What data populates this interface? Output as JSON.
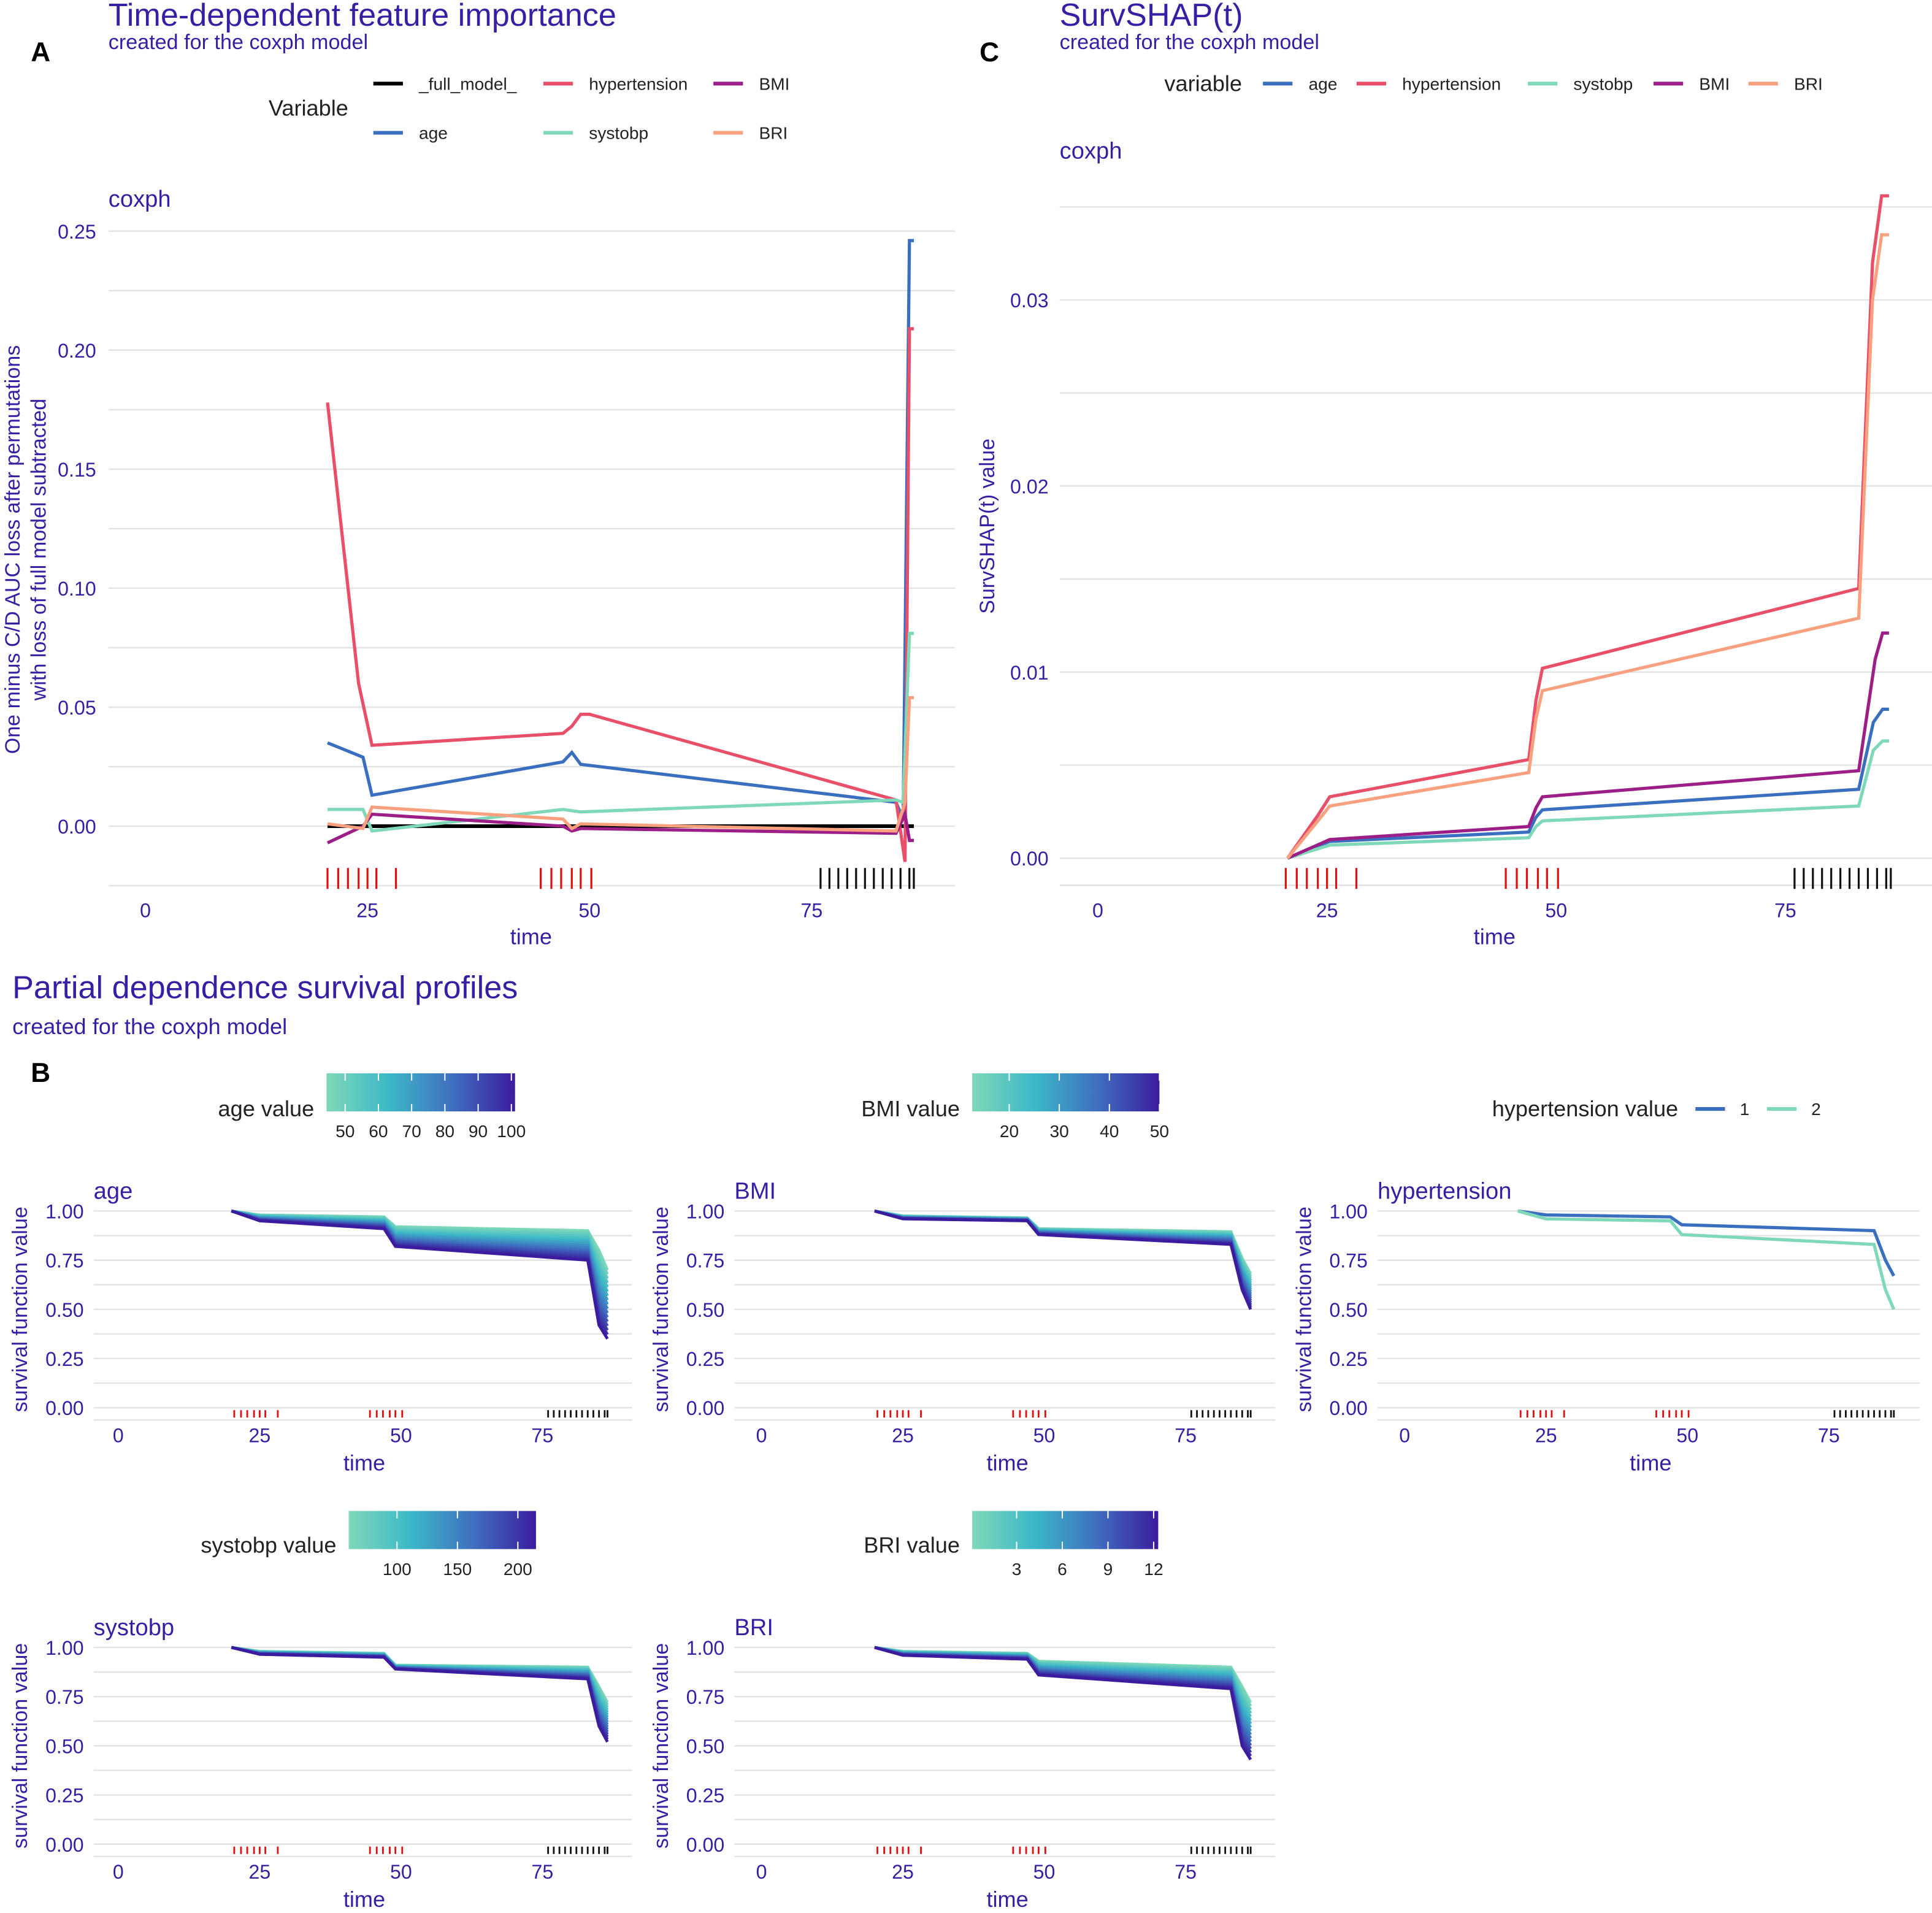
{
  "colors": {
    "text": "#371ea3",
    "full_model": "#000000",
    "age": "#3a6fbf",
    "hypertension": "#e8506a",
    "systobp": "#7fd8b8",
    "BMI": "#9c1f88",
    "BRI": "#f9a07f",
    "grid": "#e3e3e3",
    "rug_event": "#e01010",
    "rug_censor": "#111111",
    "gradient": [
      "#7fd8b8",
      "#3cb8c8",
      "#3f6fbf",
      "#3b1c9e"
    ]
  },
  "labels": {
    "A": "A",
    "B": "B",
    "C": "C"
  },
  "chart_data": [
    {
      "id": "A",
      "type": "line",
      "title": "Time-dependent feature importance",
      "subtitle": "created for the coxph model",
      "facet": "coxph",
      "xlabel": "time",
      "ylabel": [
        "One minus C/D AUC loss after permutations",
        "with loss of full model subtracted"
      ],
      "legend_title": "Variable",
      "xlim": [
        0,
        90
      ],
      "ylim": [
        -0.025,
        0.25
      ],
      "xticks": [
        "0",
        "25",
        "50",
        "75"
      ],
      "yticks": [
        "0.00",
        "0.05",
        "0.10",
        "0.15",
        "0.20",
        "0.25"
      ],
      "series": [
        {
          "name": "_full_model_",
          "key": "full_model",
          "points": [
            [
              20.5,
              0
            ],
            [
              86.5,
              0
            ]
          ]
        },
        {
          "name": "age",
          "key": "age",
          "points": [
            [
              20.5,
              0.035
            ],
            [
              24.5,
              0.029
            ],
            [
              25.5,
              0.013
            ],
            [
              47,
              0.027
            ],
            [
              48,
              0.031
            ],
            [
              49,
              0.026
            ],
            [
              84.5,
              0.01
            ],
            [
              85.3,
              0.003
            ],
            [
              86,
              0.246
            ],
            [
              86.5,
              0.246
            ]
          ]
        },
        {
          "name": "hypertension",
          "key": "hypertension",
          "points": [
            [
              20.5,
              0.178
            ],
            [
              24,
              0.06
            ],
            [
              25.5,
              0.034
            ],
            [
              47,
              0.039
            ],
            [
              48,
              0.042
            ],
            [
              49,
              0.047
            ],
            [
              50,
              0.047
            ],
            [
              84.5,
              0.011
            ],
            [
              85.5,
              -0.015
            ],
            [
              86,
              0.209
            ],
            [
              86.5,
              0.209
            ]
          ]
        },
        {
          "name": "systobp",
          "key": "systobp",
          "points": [
            [
              20.5,
              0.007
            ],
            [
              24.5,
              0.007
            ],
            [
              25.5,
              -0.002
            ],
            [
              47,
              0.007
            ],
            [
              49,
              0.006
            ],
            [
              84.5,
              0.011
            ],
            [
              85.3,
              0.01
            ],
            [
              86,
              0.081
            ],
            [
              86.5,
              0.081
            ]
          ]
        },
        {
          "name": "BMI",
          "key": "BMI",
          "points": [
            [
              20.5,
              -0.007
            ],
            [
              24.5,
              0
            ],
            [
              25.5,
              0.005
            ],
            [
              47,
              0
            ],
            [
              48,
              -0.002
            ],
            [
              49,
              -0.001
            ],
            [
              84.5,
              -0.003
            ],
            [
              85.5,
              0.005
            ],
            [
              86,
              -0.006
            ],
            [
              86.5,
              -0.006
            ]
          ]
        },
        {
          "name": "BRI",
          "key": "BRI",
          "points": [
            [
              20.5,
              0.001
            ],
            [
              24.5,
              -0.001
            ],
            [
              25.5,
              0.008
            ],
            [
              47,
              0.003
            ],
            [
              48,
              -0.001
            ],
            [
              49,
              0.001
            ],
            [
              84.5,
              -0.002
            ],
            [
              85.5,
              0.01
            ],
            [
              86,
              0.054
            ],
            [
              86.5,
              0.054
            ]
          ]
        }
      ]
    },
    {
      "id": "C",
      "type": "line",
      "title": "SurvSHAP(t)",
      "subtitle": "created for the coxph model",
      "facet": "coxph",
      "xlabel": "time",
      "ylabel": "SurvSHAP(t) value",
      "legend_title": "variable",
      "xlim": [
        0,
        90
      ],
      "ylim": [
        0,
        0.035
      ],
      "xticks": [
        "0",
        "25",
        "50",
        "75"
      ],
      "yticks": [
        "0.00",
        "0.01",
        "0.02",
        "0.03"
      ],
      "series": [
        {
          "name": "age",
          "key": "age",
          "points": [
            [
              20.7,
              0
            ],
            [
              25.3,
              0.0009
            ],
            [
              47,
              0.0014
            ],
            [
              47.8,
              0.0022
            ],
            [
              48.5,
              0.0026
            ],
            [
              83,
              0.0037
            ],
            [
              84.6,
              0.0073
            ],
            [
              85.6,
              0.008
            ],
            [
              86.3,
              0.008
            ]
          ]
        },
        {
          "name": "hypertension",
          "key": "hypertension",
          "points": [
            [
              20.7,
              0
            ],
            [
              24,
              0.0023
            ],
            [
              25.3,
              0.0033
            ],
            [
              47,
              0.0053
            ],
            [
              47.8,
              0.0085
            ],
            [
              48.5,
              0.0102
            ],
            [
              83,
              0.0145
            ],
            [
              84.5,
              0.032
            ],
            [
              85.5,
              0.0356
            ],
            [
              86.3,
              0.0356
            ]
          ]
        },
        {
          "name": "systobp",
          "key": "systobp",
          "points": [
            [
              20.7,
              0
            ],
            [
              25.3,
              0.0007
            ],
            [
              47,
              0.0011
            ],
            [
              47.8,
              0.0017
            ],
            [
              48.5,
              0.002
            ],
            [
              83,
              0.0028
            ],
            [
              84.6,
              0.0058
            ],
            [
              85.6,
              0.0063
            ],
            [
              86.3,
              0.0063
            ]
          ]
        },
        {
          "name": "BMI",
          "key": "BMI",
          "points": [
            [
              20.7,
              0
            ],
            [
              25.3,
              0.001
            ],
            [
              47,
              0.0017
            ],
            [
              47.8,
              0.0027
            ],
            [
              48.5,
              0.0033
            ],
            [
              83,
              0.0047
            ],
            [
              84.8,
              0.0107
            ],
            [
              85.6,
              0.0121
            ],
            [
              86.3,
              0.0121
            ]
          ]
        },
        {
          "name": "BRI",
          "key": "BRI",
          "points": [
            [
              20.7,
              0
            ],
            [
              24,
              0.002
            ],
            [
              25.3,
              0.0028
            ],
            [
              47,
              0.0046
            ],
            [
              47.8,
              0.0075
            ],
            [
              48.5,
              0.009
            ],
            [
              83,
              0.0129
            ],
            [
              84.5,
              0.03
            ],
            [
              85.5,
              0.0335
            ],
            [
              86.3,
              0.0335
            ]
          ]
        }
      ]
    },
    {
      "id": "B",
      "type": "line",
      "title": "Partial dependence survival profiles",
      "subtitle": "created for the coxph model",
      "xlabel": "time",
      "ylabel": "survival function value",
      "xlim": [
        0,
        90
      ],
      "ylim": [
        0,
        1
      ],
      "xticks": [
        "0",
        "25",
        "50",
        "75"
      ],
      "yticks": [
        "0.00",
        "0.25",
        "0.50",
        "0.75",
        "1.00"
      ],
      "panels": [
        {
          "name": "age",
          "legend_title": "age value",
          "legend_type": "gradient",
          "range": [
            44.4,
            101.1
          ],
          "legend_ticks": [
            "50",
            "60",
            "70",
            "80",
            "90",
            "100"
          ],
          "upper": [
            [
              20,
              1
            ],
            [
              25,
              0.98
            ],
            [
              47,
              0.97
            ],
            [
              49,
              0.92
            ],
            [
              83,
              0.9
            ],
            [
              85,
              0.8
            ],
            [
              86.5,
              0.7
            ]
          ],
          "lower": [
            [
              20,
              1
            ],
            [
              25,
              0.95
            ],
            [
              47,
              0.91
            ],
            [
              49,
              0.82
            ],
            [
              83,
              0.75
            ],
            [
              85,
              0.42
            ],
            [
              86.5,
              0.35
            ]
          ]
        },
        {
          "name": "BMI",
          "legend_title": "BMI value",
          "legend_type": "gradient",
          "range": [
            12.6,
            50
          ],
          "legend_ticks": [
            "20",
            "30",
            "40",
            "50"
          ],
          "upper": [
            [
              20,
              1
            ],
            [
              25,
              0.975
            ],
            [
              47,
              0.965
            ],
            [
              49,
              0.91
            ],
            [
              83,
              0.895
            ],
            [
              85,
              0.76
            ],
            [
              86.5,
              0.68
            ]
          ],
          "lower": [
            [
              20,
              1
            ],
            [
              25,
              0.96
            ],
            [
              47,
              0.95
            ],
            [
              49,
              0.88
            ],
            [
              83,
              0.83
            ],
            [
              85,
              0.6
            ],
            [
              86.5,
              0.5
            ]
          ]
        },
        {
          "name": "hypertension",
          "legend_title": "hypertension value",
          "legend_type": "discrete",
          "levels": [
            "1",
            "2"
          ],
          "upper": [
            [
              20,
              1
            ],
            [
              25,
              0.98
            ],
            [
              47,
              0.97
            ],
            [
              49,
              0.93
            ],
            [
              83,
              0.9
            ],
            [
              85,
              0.75
            ],
            [
              86.5,
              0.67
            ]
          ],
          "lower": [
            [
              20,
              1
            ],
            [
              25,
              0.96
            ],
            [
              47,
              0.95
            ],
            [
              49,
              0.88
            ],
            [
              83,
              0.83
            ],
            [
              85,
              0.6
            ],
            [
              86.5,
              0.5
            ]
          ]
        },
        {
          "name": "systobp",
          "legend_title": "systobp value",
          "legend_type": "gradient",
          "range": [
            60,
            215
          ],
          "legend_ticks": [
            "100",
            "150",
            "200"
          ],
          "upper": [
            [
              20,
              1
            ],
            [
              25,
              0.98
            ],
            [
              47,
              0.97
            ],
            [
              49,
              0.91
            ],
            [
              83,
              0.9
            ],
            [
              85,
              0.8
            ],
            [
              86.5,
              0.72
            ]
          ],
          "lower": [
            [
              20,
              1
            ],
            [
              25,
              0.965
            ],
            [
              47,
              0.95
            ],
            [
              49,
              0.89
            ],
            [
              83,
              0.84
            ],
            [
              85,
              0.6
            ],
            [
              86.5,
              0.52
            ]
          ]
        },
        {
          "name": "BRI",
          "legend_title": "BRI value",
          "legend_type": "gradient",
          "range": [
            0.08,
            12.3
          ],
          "legend_ticks": [
            "3",
            "6",
            "9",
            "12"
          ],
          "upper": [
            [
              20,
              1
            ],
            [
              25,
              0.98
            ],
            [
              47,
              0.97
            ],
            [
              49,
              0.93
            ],
            [
              83,
              0.9
            ],
            [
              85,
              0.8
            ],
            [
              86.5,
              0.72
            ]
          ],
          "lower": [
            [
              20,
              1
            ],
            [
              25,
              0.96
            ],
            [
              47,
              0.94
            ],
            [
              49,
              0.86
            ],
            [
              83,
              0.79
            ],
            [
              85,
              0.5
            ],
            [
              86.5,
              0.43
            ]
          ]
        }
      ]
    }
  ],
  "rug": {
    "event_times": [
      20.5,
      21.7,
      22.8,
      24,
      25,
      26,
      28.2,
      44.5,
      45.7,
      46.8,
      48,
      49,
      50.2
    ],
    "censor_times": [
      76,
      77,
      78,
      79,
      80,
      81,
      82,
      83,
      84,
      85,
      86,
      86.5
    ]
  }
}
